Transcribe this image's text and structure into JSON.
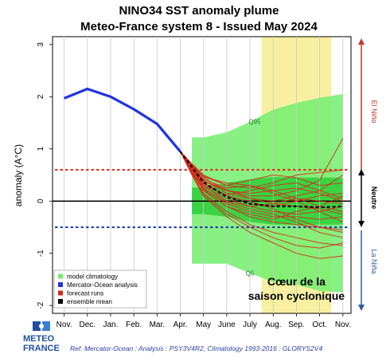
{
  "header": {
    "title_line1": "NINO34 SST anomaly plume",
    "title_line2": "Meteo-France system 8    -   Issued May 2024"
  },
  "chart_data": {
    "type": "line",
    "ylabel": "anomaly (A°C)",
    "ylim": [
      -2.15,
      3.15
    ],
    "yticks": [
      -2,
      -1,
      0,
      1,
      2,
      3
    ],
    "xlim": [
      -0.5,
      12.35
    ],
    "x_months": [
      "Nov.",
      "Dec.",
      "Jan.",
      "Feb.",
      "Mar.",
      "Apr.",
      "May",
      "June",
      "July",
      "Aug.",
      "Sep.",
      "Oct.",
      "Nov."
    ],
    "analysis": {
      "name": "Mercator-Ocean analysis",
      "color": "#2233dd",
      "x": [
        0,
        1,
        2,
        3,
        4,
        5
      ],
      "y": [
        1.97,
        2.15,
        2.0,
        1.76,
        1.48,
        0.95
      ]
    },
    "model_climatology": {
      "name": "model climatology",
      "color": "#72ee6f",
      "inner_color": "#2ece38",
      "outer_band": [
        {
          "x": 6,
          "lo": -1.2,
          "hi": 1.22
        },
        {
          "x": 7,
          "lo": -1.2,
          "hi": 1.32
        },
        {
          "x": 8,
          "lo": -1.38,
          "hi": 1.52
        },
        {
          "x": 9,
          "lo": -1.55,
          "hi": 1.75
        },
        {
          "x": 10,
          "lo": -1.6,
          "hi": 1.88
        },
        {
          "x": 11,
          "lo": -1.72,
          "hi": 1.98
        },
        {
          "x": 12,
          "lo": -1.75,
          "hi": 2.05
        }
      ],
      "inner_band": [
        {
          "x": 6,
          "lo": -0.25,
          "hi": 0.26
        },
        {
          "x": 7,
          "lo": -0.3,
          "hi": 0.35
        },
        {
          "x": 8,
          "lo": -0.4,
          "hi": 0.42
        },
        {
          "x": 9,
          "lo": -0.45,
          "hi": 0.46
        },
        {
          "x": 10,
          "lo": -0.45,
          "hi": 0.45
        },
        {
          "x": 11,
          "lo": -0.45,
          "hi": 0.45
        },
        {
          "x": 12,
          "lo": -0.45,
          "hi": 0.45
        }
      ],
      "q_labels": [
        {
          "text": "Q95",
          "x": 8.2,
          "y": 1.52
        },
        {
          "text": "Q5",
          "x": 8.0,
          "y": -1.38
        }
      ]
    },
    "forecast_runs": {
      "name": "forecast runs",
      "color": "#d42a1a",
      "start": {
        "x": 5,
        "y": 0.95
      },
      "x": [
        5.5,
        6,
        7,
        8,
        9,
        10,
        11,
        12
      ],
      "runs": [
        [
          0.72,
          0.5,
          0.3,
          0.25,
          0.35,
          0.5,
          0.55,
          0.6
        ],
        [
          0.68,
          0.45,
          0.2,
          0.1,
          0.1,
          0.2,
          0.4,
          1.2
        ],
        [
          0.65,
          0.4,
          0.15,
          0.05,
          0.0,
          0.1,
          0.2,
          0.5
        ],
        [
          0.7,
          0.48,
          0.3,
          0.4,
          0.5,
          0.45,
          0.3,
          0.35
        ],
        [
          0.62,
          0.35,
          0.1,
          -0.05,
          -0.1,
          0.0,
          0.1,
          0.15
        ],
        [
          0.6,
          0.3,
          0.0,
          -0.1,
          -0.2,
          -0.25,
          -0.2,
          -0.1
        ],
        [
          0.58,
          0.25,
          -0.05,
          -0.2,
          -0.3,
          -0.3,
          -0.35,
          -0.3
        ],
        [
          0.55,
          0.2,
          -0.1,
          -0.3,
          -0.4,
          -0.45,
          -0.5,
          -0.55
        ],
        [
          0.52,
          0.15,
          -0.2,
          -0.45,
          -0.6,
          -0.7,
          -0.8,
          -0.85
        ],
        [
          0.5,
          0.1,
          -0.3,
          -0.6,
          -0.8,
          -1.0,
          -1.1,
          -1.05
        ],
        [
          0.63,
          0.38,
          0.2,
          0.15,
          0.2,
          0.25,
          0.15,
          0.0
        ],
        [
          0.66,
          0.42,
          0.25,
          0.3,
          0.2,
          0.05,
          -0.1,
          -0.2
        ],
        [
          0.57,
          0.28,
          0.05,
          -0.1,
          -0.05,
          0.05,
          0.0,
          -0.05
        ],
        [
          0.54,
          0.22,
          -0.1,
          -0.25,
          -0.35,
          -0.2,
          -0.1,
          0.1
        ],
        [
          0.61,
          0.33,
          0.1,
          0.0,
          -0.15,
          -0.35,
          -0.5,
          -0.6
        ],
        [
          0.69,
          0.46,
          0.35,
          0.3,
          0.15,
          0.0,
          -0.2,
          -0.4
        ],
        [
          0.59,
          0.3,
          0.12,
          0.2,
          0.3,
          0.35,
          0.2,
          0.05
        ],
        [
          0.56,
          0.24,
          -0.02,
          -0.15,
          -0.25,
          -0.4,
          -0.6,
          -0.7
        ],
        [
          0.64,
          0.39,
          0.22,
          0.05,
          -0.05,
          -0.1,
          -0.15,
          -0.25
        ],
        [
          0.51,
          0.12,
          -0.25,
          -0.5,
          -0.7,
          -0.85,
          -0.9,
          -0.8
        ]
      ]
    },
    "ensemble_mean": {
      "name": "ensemble mean",
      "color": "#000000",
      "x": [
        5,
        6,
        7,
        8,
        9,
        10,
        11,
        12
      ],
      "y": [
        0.95,
        0.36,
        0.08,
        -0.05,
        -0.1,
        -0.1,
        -0.12,
        -0.1
      ]
    },
    "thresholds": [
      {
        "y": 0.6,
        "color": "#e03020"
      },
      {
        "y": -0.5,
        "color": "#2040b0"
      }
    ],
    "zero_line": {
      "y": 0,
      "color": "#000000"
    },
    "highlight_period": {
      "x_from": 8.5,
      "x_to": 11.5,
      "color": "#f7f0a0"
    },
    "annotation": {
      "line1": "Cœur de la",
      "line2": "saison cyclonique"
    },
    "side_labels": {
      "el_nino": "El Niño",
      "neutre": "Neutre",
      "la_nina": "La Niña"
    },
    "legend": {
      "placement": "bottom-left",
      "items": [
        {
          "label": "model climatology",
          "color": "#72ee6f"
        },
        {
          "label": "Mercator-Ocean analysis",
          "color": "#2233dd"
        },
        {
          "label": "forecast runs",
          "color": "#d42a1a"
        },
        {
          "label": "ensemble mean",
          "color": "#000000"
        }
      ]
    }
  },
  "footer": {
    "logo_line1": "METEO",
    "logo_line2": "FRANCE",
    "reference": "Ref. Mercator-Ocean :  Analysis : PSY3V4R2, Climatology 1993-2016 : GLORYS2V4"
  }
}
